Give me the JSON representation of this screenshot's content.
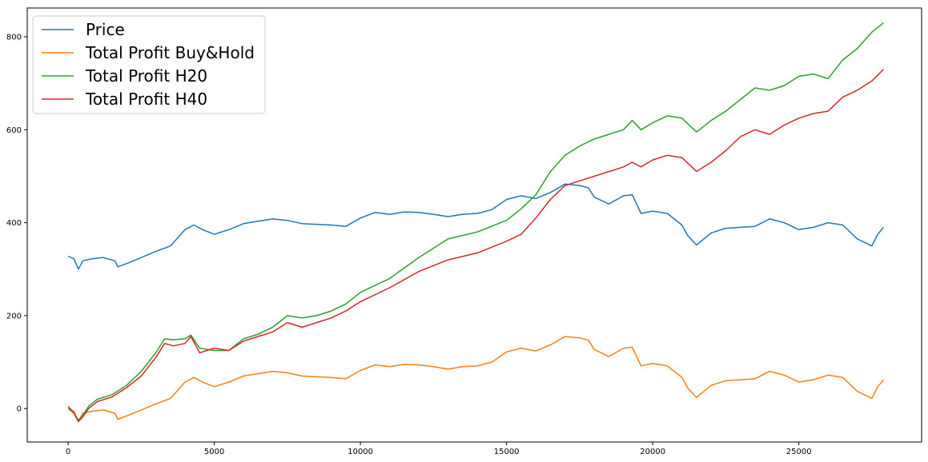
{
  "chart_data": {
    "type": "line",
    "title": "",
    "xlabel": "",
    "ylabel": "",
    "xlim": [
      -1400,
      29200
    ],
    "ylim": [
      -72,
      862
    ],
    "xticks": [
      0,
      5000,
      10000,
      15000,
      20000,
      25000
    ],
    "yticks": [
      0,
      200,
      400,
      600,
      800
    ],
    "grid": false,
    "legend": "top-left",
    "series": [
      {
        "name": "Price",
        "color": "#1f77b4",
        "x": [
          0,
          200,
          350,
          500,
          800,
          1200,
          1600,
          1700,
          2000,
          2500,
          3000,
          3500,
          4000,
          4300,
          4600,
          5000,
          5500,
          6000,
          6500,
          7000,
          7500,
          8000,
          9000,
          9500,
          10000,
          10500,
          11000,
          11500,
          12000,
          12500,
          13000,
          13500,
          14000,
          14500,
          15000,
          15500,
          16000,
          16500,
          17000,
          17500,
          17800,
          18000,
          18500,
          19000,
          19300,
          19600,
          20000,
          20500,
          21000,
          21200,
          21500,
          22000,
          22500,
          23000,
          23500,
          24000,
          24500,
          25000,
          25500,
          26000,
          26500,
          27000,
          27500,
          27700,
          27900
        ],
        "y": [
          328,
          322,
          300,
          318,
          322,
          325,
          318,
          305,
          312,
          325,
          338,
          350,
          385,
          395,
          385,
          375,
          385,
          398,
          403,
          408,
          405,
          398,
          395,
          392,
          410,
          422,
          418,
          423,
          422,
          418,
          413,
          418,
          420,
          428,
          450,
          458,
          452,
          465,
          483,
          480,
          475,
          455,
          440,
          458,
          460,
          420,
          425,
          420,
          395,
          372,
          352,
          378,
          388,
          390,
          392,
          408,
          400,
          385,
          390,
          400,
          395,
          365,
          350,
          375,
          390
        ]
      },
      {
        "name": "Total Profit Buy&Hold",
        "color": "#ff7f0e",
        "x": [
          0,
          200,
          350,
          500,
          800,
          1200,
          1600,
          1700,
          2000,
          2500,
          3000,
          3500,
          4000,
          4300,
          4600,
          5000,
          5500,
          6000,
          6500,
          7000,
          7500,
          8000,
          9000,
          9500,
          10000,
          10500,
          11000,
          11500,
          12000,
          12500,
          13000,
          13500,
          14000,
          14500,
          15000,
          15500,
          16000,
          16500,
          17000,
          17500,
          17800,
          18000,
          18500,
          19000,
          19300,
          19600,
          20000,
          20500,
          21000,
          21200,
          21500,
          22000,
          22500,
          23000,
          23500,
          24000,
          24500,
          25000,
          25500,
          26000,
          26500,
          27000,
          27500,
          27700,
          27900
        ],
        "y": [
          0,
          -6,
          -28,
          -10,
          -6,
          -3,
          -10,
          -23,
          -16,
          -3,
          10,
          22,
          57,
          67,
          57,
          47,
          57,
          70,
          75,
          80,
          77,
          70,
          67,
          64,
          82,
          94,
          90,
          95,
          94,
          90,
          85,
          90,
          92,
          100,
          122,
          130,
          124,
          137,
          155,
          152,
          147,
          127,
          112,
          130,
          132,
          92,
          97,
          92,
          67,
          44,
          24,
          50,
          60,
          62,
          64,
          80,
          72,
          57,
          62,
          72,
          67,
          37,
          22,
          47,
          62
        ]
      },
      {
        "name": "Total Profit H20",
        "color": "#2ca02c",
        "x": [
          0,
          200,
          350,
          500,
          700,
          1000,
          1500,
          2000,
          2500,
          3000,
          3300,
          3600,
          4000,
          4200,
          4500,
          5000,
          5500,
          6000,
          6500,
          7000,
          7500,
          8000,
          8500,
          9000,
          9500,
          10000,
          11000,
          12000,
          13000,
          14000,
          15000,
          15500,
          16000,
          16500,
          17000,
          17500,
          18000,
          19000,
          19300,
          19600,
          20000,
          20500,
          21000,
          21500,
          22000,
          22500,
          23000,
          23500,
          24000,
          24500,
          25000,
          25500,
          26000,
          26500,
          27000,
          27500,
          27900
        ],
        "y": [
          0,
          -10,
          -25,
          -15,
          5,
          20,
          30,
          50,
          80,
          120,
          150,
          148,
          150,
          158,
          130,
          125,
          125,
          150,
          160,
          175,
          200,
          195,
          200,
          210,
          225,
          250,
          280,
          325,
          365,
          380,
          405,
          430,
          460,
          510,
          545,
          565,
          580,
          600,
          620,
          600,
          615,
          630,
          625,
          595,
          620,
          640,
          665,
          690,
          685,
          695,
          715,
          720,
          710,
          750,
          775,
          810,
          830
        ]
      },
      {
        "name": "Total Profit H40",
        "color": "#d62728",
        "x": [
          0,
          200,
          350,
          500,
          700,
          1000,
          1500,
          2000,
          2500,
          3000,
          3300,
          3600,
          4000,
          4200,
          4500,
          5000,
          5500,
          6000,
          6500,
          7000,
          7500,
          8000,
          8500,
          9000,
          9500,
          10000,
          11000,
          12000,
          13000,
          14000,
          15000,
          15500,
          16000,
          16500,
          17000,
          17500,
          18000,
          19000,
          19300,
          19600,
          20000,
          20500,
          21000,
          21500,
          22000,
          22500,
          23000,
          23500,
          24000,
          24500,
          25000,
          25500,
          26000,
          26500,
          27000,
          27500,
          27900
        ],
        "y": [
          5,
          -10,
          -28,
          -18,
          0,
          15,
          25,
          45,
          70,
          110,
          140,
          135,
          140,
          155,
          120,
          130,
          125,
          145,
          155,
          165,
          185,
          175,
          185,
          195,
          210,
          230,
          260,
          295,
          320,
          335,
          360,
          375,
          410,
          450,
          480,
          490,
          500,
          520,
          530,
          520,
          535,
          545,
          540,
          510,
          530,
          555,
          585,
          600,
          590,
          610,
          625,
          635,
          640,
          670,
          685,
          705,
          730
        ]
      }
    ]
  }
}
